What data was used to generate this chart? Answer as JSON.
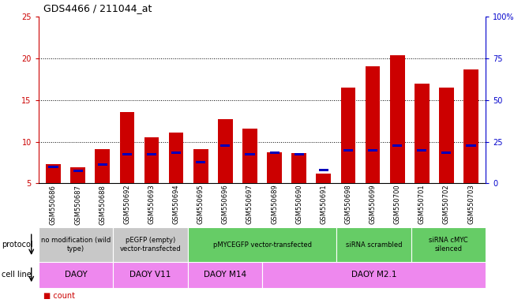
{
  "title": "GDS4466 / 211044_at",
  "samples": [
    "GSM550686",
    "GSM550687",
    "GSM550688",
    "GSM550692",
    "GSM550693",
    "GSM550694",
    "GSM550695",
    "GSM550696",
    "GSM550697",
    "GSM550689",
    "GSM550690",
    "GSM550691",
    "GSM550698",
    "GSM550699",
    "GSM550700",
    "GSM550701",
    "GSM550702",
    "GSM550703"
  ],
  "count_values": [
    7.3,
    6.9,
    9.1,
    13.6,
    10.5,
    11.1,
    9.1,
    12.7,
    11.6,
    8.7,
    8.6,
    6.2,
    16.5,
    19.0,
    20.4,
    17.0,
    16.5,
    18.7
  ],
  "percentile_values": [
    7.0,
    6.5,
    7.3,
    8.5,
    8.5,
    8.7,
    7.5,
    9.5,
    8.5,
    8.7,
    8.5,
    6.6,
    9.0,
    9.0,
    9.5,
    9.0,
    8.7,
    9.5
  ],
  "bar_bottom": 5.0,
  "ylim_left": [
    5,
    25
  ],
  "ylim_right": [
    0,
    100
  ],
  "yticks_left": [
    5,
    10,
    15,
    20,
    25
  ],
  "yticks_right": [
    0,
    25,
    50,
    75,
    100
  ],
  "ytick_labels_right": [
    "0",
    "25",
    "50",
    "75",
    "100%"
  ],
  "left_color": "#cc0000",
  "right_color": "#0000cc",
  "bar_color_red": "#cc0000",
  "bar_color_blue": "#0000bb",
  "bg_color": "#ffffff",
  "plot_bg": "#ffffff",
  "protocol_labels": [
    {
      "text": "no modification (wild\ntype)",
      "start": 0,
      "end": 3,
      "color": "#c8c8c8"
    },
    {
      "text": "pEGFP (empty)\nvector-transfected",
      "start": 3,
      "end": 6,
      "color": "#c8c8c8"
    },
    {
      "text": "pMYCEGFP vector-transfected",
      "start": 6,
      "end": 12,
      "color": "#66cc66"
    },
    {
      "text": "siRNA scrambled",
      "start": 12,
      "end": 15,
      "color": "#66cc66"
    },
    {
      "text": "siRNA cMYC\nsilenced",
      "start": 15,
      "end": 18,
      "color": "#66cc66"
    }
  ],
  "cellline_labels": [
    {
      "text": "DAOY",
      "start": 0,
      "end": 3,
      "color": "#ee88ee"
    },
    {
      "text": "DAOY V11",
      "start": 3,
      "end": 6,
      "color": "#ee88ee"
    },
    {
      "text": "DAOY M14",
      "start": 6,
      "end": 9,
      "color": "#ee88ee"
    },
    {
      "text": "DAOY M2.1",
      "start": 9,
      "end": 18,
      "color": "#ee88ee"
    }
  ],
  "tick_fontsize": 6,
  "title_fontsize": 9
}
